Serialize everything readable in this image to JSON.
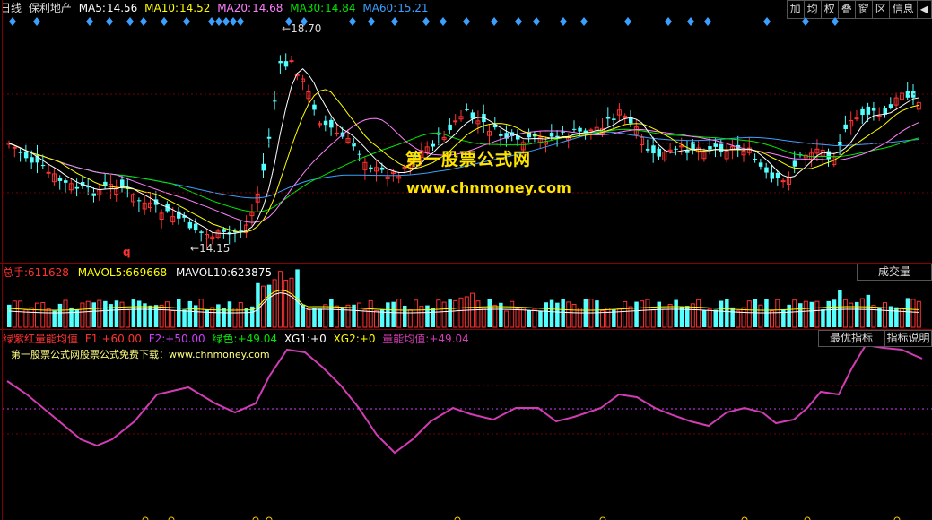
{
  "header": {
    "period": "日线",
    "stock_name": "保利地产",
    "ma5_label": "MA5:",
    "ma5_value": "14.56",
    "ma10_label": "MA10:",
    "ma10_value": "14.52",
    "ma20_label": "MA20:",
    "ma20_value": "14.68",
    "ma30_label": "MA30:",
    "ma30_value": "14.84",
    "ma60_label": "MA60:",
    "ma60_value": "15.21"
  },
  "toolbar": [
    "加",
    "均",
    "权",
    "叠",
    "窗",
    "区",
    "信息",
    "◀"
  ],
  "price_chart": {
    "high_annotation": "18.70",
    "low_annotation": "14.15",
    "marker_q": "q",
    "watermark_title": "第一股票公式网",
    "watermark_url": "www.chnmoney.com"
  },
  "volume_panel": {
    "total_label": "总手:",
    "total_value": "611628",
    "mavol5_label": "MAVOL5:",
    "mavol5_value": "669668",
    "mavol10_label": "MAVOL10:",
    "mavol10_value": "623875",
    "selector": "成交量"
  },
  "indicator_panel": {
    "name": "绿紫红量能均值",
    "f1_label": "F1:",
    "f1_value": "+60.00",
    "f2_label": "F2:",
    "f2_value": "+50.00",
    "green_label": "绿色:",
    "green_value": "+49.04",
    "xg1_label": "XG1:",
    "xg1_value": "+0",
    "xg2_label": "XG2:",
    "xg2_value": "+0",
    "avg_label": "量能均值:",
    "avg_value": "+49.04",
    "note": "第一股票公式网股票公式免费下载：www.chnmoney.com",
    "best_button": "最优指标",
    "help_button": "指标说明"
  },
  "colors": {
    "up": "#ff3232",
    "down": "#54ffff",
    "ma5": "#ffffff",
    "ma10": "#ffff00",
    "ma20": "#ff80ff",
    "ma30": "#00e600",
    "ma60": "#3aa0ff",
    "indicator_line": "#d23cb4",
    "separator": "#8a0000"
  }
}
